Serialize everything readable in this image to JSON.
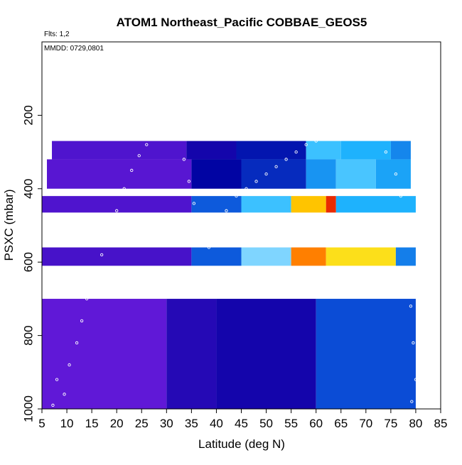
{
  "chart_data": {
    "type": "heatmap",
    "title": "ATOM1 Northeast_Pacific COBBAE_GEOS5",
    "annotations": [
      "Flts: 1,2",
      "MMDD: 0729,0801"
    ],
    "xlabel": "Latitude (deg N)",
    "ylabel": "PSXC (mbar)",
    "xlim": [
      5,
      85
    ],
    "ylim": [
      1000,
      0
    ],
    "x_ticks": [
      5,
      10,
      15,
      20,
      25,
      30,
      35,
      40,
      45,
      50,
      55,
      60,
      65,
      70,
      75,
      80,
      85
    ],
    "y_ticks": [
      200,
      400,
      600,
      800,
      1000
    ],
    "colorscale": [
      "#7a1fe6",
      "#0000a0",
      "#0b4fd8",
      "#1fb8ff",
      "#dff2ff",
      "#ffdd00",
      "#ff7a00",
      "#dd0000"
    ],
    "rows": [
      {
        "p": [
          270,
          320
        ],
        "lat_range": [
          7,
          79
        ],
        "segments": [
          {
            "x": [
              7,
              34
            ],
            "value": 0.05
          },
          {
            "x": [
              34,
              44
            ],
            "value": 0.12
          },
          {
            "x": [
              44,
              58
            ],
            "value": 0.18
          },
          {
            "x": [
              58,
              65
            ],
            "value": 0.45
          },
          {
            "x": [
              65,
              75
            ],
            "value": 0.42
          },
          {
            "x": [
              75,
              79
            ],
            "value": 0.36
          }
        ]
      },
      {
        "p": [
          320,
          400
        ],
        "lat_range": [
          6,
          79
        ],
        "segments": [
          {
            "x": [
              6,
              35
            ],
            "value": 0.04
          },
          {
            "x": [
              35,
              45
            ],
            "value": 0.15
          },
          {
            "x": [
              45,
              58
            ],
            "value": 0.22
          },
          {
            "x": [
              58,
              64
            ],
            "value": 0.38
          },
          {
            "x": [
              64,
              72
            ],
            "value": 0.46
          },
          {
            "x": [
              72,
              79
            ],
            "value": 0.4
          }
        ]
      },
      {
        "p": [
          420,
          465
        ],
        "lat_range": [
          5,
          80
        ],
        "segments": [
          {
            "x": [
              5,
              35
            ],
            "value": 0.05
          },
          {
            "x": [
              35,
              45
            ],
            "value": 0.3
          },
          {
            "x": [
              45,
              55
            ],
            "value": 0.45
          },
          {
            "x": [
              55,
              62
            ],
            "value": 0.75
          },
          {
            "x": [
              62,
              64
            ],
            "value": 0.95
          },
          {
            "x": [
              64,
              80
            ],
            "value": 0.42
          }
        ]
      },
      {
        "p": [
          560,
          610
        ],
        "lat_range": [
          5,
          80
        ],
        "segments": [
          {
            "x": [
              5,
              35
            ],
            "value": 0.06
          },
          {
            "x": [
              35,
              45
            ],
            "value": 0.3
          },
          {
            "x": [
              45,
              55
            ],
            "value": 0.5
          },
          {
            "x": [
              55,
              62
            ],
            "value": 0.85
          },
          {
            "x": [
              62,
              76
            ],
            "value": 0.7
          },
          {
            "x": [
              76,
              80
            ],
            "value": 0.35
          }
        ]
      },
      {
        "p": [
          700,
          1000
        ],
        "lat_range": [
          5,
          80
        ],
        "segments": [
          {
            "x": [
              5,
              30
            ],
            "value": 0.03
          },
          {
            "x": [
              30,
              40
            ],
            "value": 0.1
          },
          {
            "x": [
              40,
              60
            ],
            "value": 0.12
          },
          {
            "x": [
              60,
              80
            ],
            "value": 0.28
          }
        ]
      }
    ],
    "flight_track_points": [
      [
        7.2,
        990
      ],
      [
        8,
        920
      ],
      [
        9.5,
        960
      ],
      [
        10.5,
        880
      ],
      [
        12,
        820
      ],
      [
        13,
        760
      ],
      [
        14,
        700
      ],
      [
        15.5,
        640
      ],
      [
        17,
        580
      ],
      [
        18.5,
        520
      ],
      [
        20,
        460
      ],
      [
        21.5,
        400
      ],
      [
        23,
        350
      ],
      [
        24.5,
        310
      ],
      [
        26,
        280
      ],
      [
        27.5,
        240
      ],
      [
        29,
        200
      ],
      [
        30.5,
        200
      ],
      [
        31.5,
        220
      ],
      [
        32.5,
        260
      ],
      [
        33.5,
        320
      ],
      [
        34.5,
        380
      ],
      [
        35.5,
        440
      ],
      [
        36.5,
        500
      ],
      [
        37.5,
        540
      ],
      [
        38.5,
        560
      ],
      [
        40,
        520
      ],
      [
        42,
        460
      ],
      [
        44,
        420
      ],
      [
        46,
        400
      ],
      [
        48,
        380
      ],
      [
        50,
        360
      ],
      [
        52,
        340
      ],
      [
        54,
        320
      ],
      [
        56,
        300
      ],
      [
        58,
        280
      ],
      [
        60,
        270
      ],
      [
        62,
        260
      ],
      [
        64,
        250
      ],
      [
        66,
        240
      ],
      [
        68,
        230
      ],
      [
        70,
        240
      ],
      [
        72,
        260
      ],
      [
        74,
        300
      ],
      [
        76,
        360
      ],
      [
        77,
        420
      ],
      [
        78,
        520
      ],
      [
        78.5,
        620
      ],
      [
        79,
        720
      ],
      [
        79.5,
        820
      ],
      [
        80,
        920
      ],
      [
        79.2,
        980
      ]
    ]
  }
}
